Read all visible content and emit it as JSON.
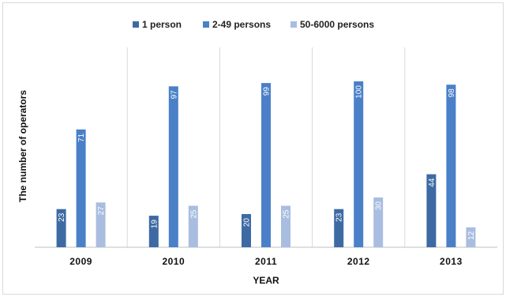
{
  "chart_data": {
    "type": "bar",
    "title": "",
    "xlabel": "YEAR",
    "ylabel": "The number of operators",
    "categories": [
      "2009",
      "2010",
      "2011",
      "2012",
      "2013"
    ],
    "series": [
      {
        "name": "1 person",
        "values": [
          23,
          19,
          20,
          23,
          44
        ],
        "color": "#3e6aa3"
      },
      {
        "name": "2-49 persons",
        "values": [
          71,
          97,
          99,
          100,
          98
        ],
        "color": "#4a80c8"
      },
      {
        "name": "50-6000 persons",
        "values": [
          27,
          25,
          25,
          30,
          12
        ],
        "color": "#a9bde0"
      }
    ],
    "ylim": [
      0,
      100
    ],
    "grid": false,
    "category_separators": true,
    "data_labels": "inside-end-rotated",
    "legend_position": "top-center",
    "colors": {
      "background": "#ffffff",
      "frame": "#d9d9d9",
      "separator": "#d9d9d9",
      "axis": "#bfbfbf"
    }
  }
}
